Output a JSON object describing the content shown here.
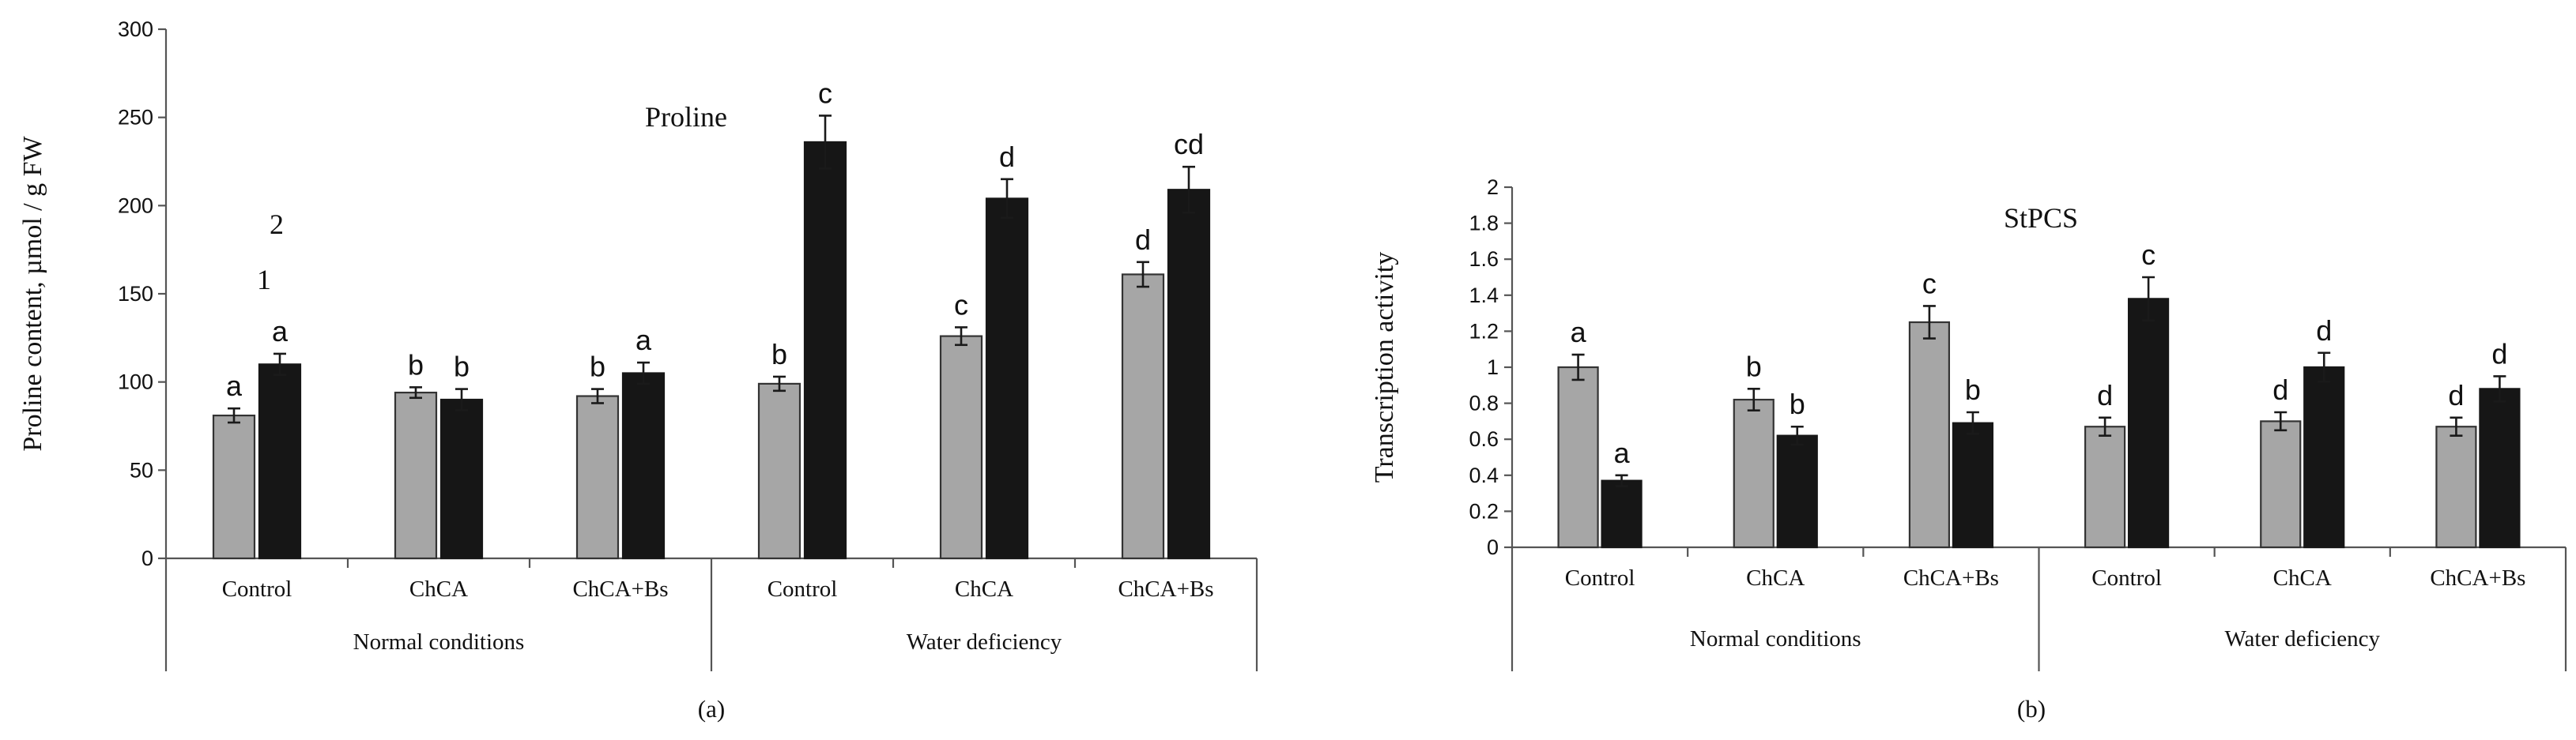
{
  "chart_data": [
    {
      "type": "bar",
      "title": "Proline",
      "ylabel": "Proline content, µmol / g FW",
      "xlabel": "",
      "ylim": [
        0,
        300
      ],
      "yticks": [
        "0",
        "50",
        "100",
        "150",
        "200",
        "250",
        "300"
      ],
      "categories": [
        "Control",
        "ChCA",
        "ChCA+Bs",
        "Control",
        "ChCA",
        "ChCA+Bs"
      ],
      "groups": [
        "Normal conditions",
        "Water deficiency"
      ],
      "series": [
        {
          "name": "1",
          "color": "#a6a6a6",
          "values": [
            81,
            94,
            92,
            99,
            126,
            161
          ],
          "errors": [
            4,
            3,
            4,
            4,
            5,
            7
          ],
          "letters": [
            "a",
            "b",
            "b",
            "b",
            "c",
            "d"
          ]
        },
        {
          "name": "2",
          "color": "#161616",
          "values": [
            110,
            90,
            105,
            236,
            204,
            209
          ],
          "errors": [
            6,
            6,
            6,
            15,
            11,
            13
          ],
          "letters": [
            "a",
            "b",
            "a",
            "c",
            "d",
            "cd"
          ]
        }
      ],
      "series_markers": [
        "1",
        "2"
      ],
      "caption": "(a)"
    },
    {
      "type": "bar",
      "title": "StPCS",
      "ylabel": "Transcription activity",
      "xlabel": "",
      "ylim": [
        0,
        2
      ],
      "yticks": [
        "0",
        "0.2",
        "0.4",
        "0.6",
        "0.8",
        "1",
        "1.2",
        "1.4",
        "1.6",
        "1.8",
        "2"
      ],
      "categories": [
        "Control",
        "ChCA",
        "ChCA+Bs",
        "Control",
        "ChCA",
        "ChCA+Bs"
      ],
      "groups": [
        "Normal conditions",
        "Water deficiency"
      ],
      "series": [
        {
          "name": "1",
          "color": "#a6a6a6",
          "values": [
            1.0,
            0.82,
            1.25,
            0.67,
            0.7,
            0.67
          ],
          "errors": [
            0.07,
            0.06,
            0.09,
            0.05,
            0.05,
            0.05
          ],
          "letters": [
            "a",
            "b",
            "c",
            "d",
            "d",
            "d"
          ]
        },
        {
          "name": "2",
          "color": "#161616",
          "values": [
            0.37,
            0.62,
            0.69,
            1.38,
            1.0,
            0.88
          ],
          "errors": [
            0.03,
            0.05,
            0.06,
            0.12,
            0.08,
            0.07
          ],
          "letters": [
            "a",
            "b",
            "b",
            "c",
            "d",
            "d"
          ]
        }
      ],
      "caption": "(b)"
    }
  ]
}
